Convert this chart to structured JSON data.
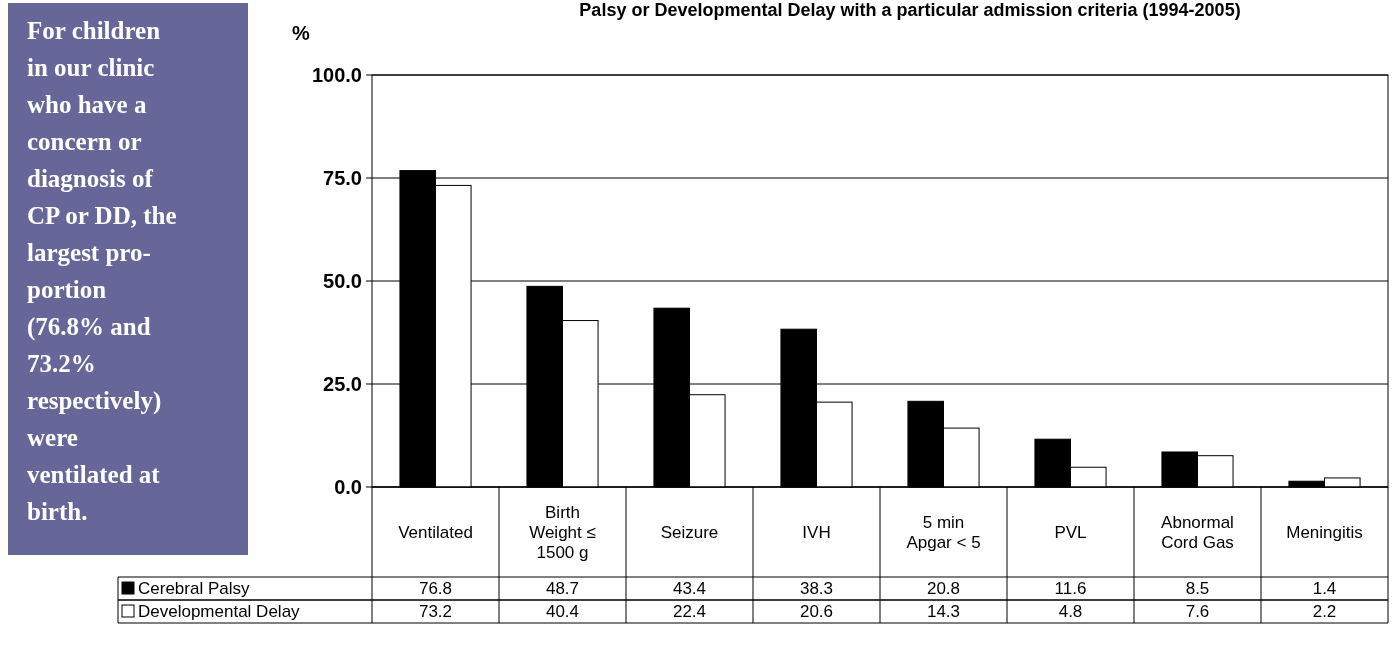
{
  "chart_data": {
    "type": "bar",
    "title": "Palsy or Developmental Delay with a particular admission criteria  (1994-2005)",
    "ylabel": "%",
    "categories": [
      "Ventilated",
      "Birth Weight ≤ 1500 g",
      "Seizure",
      "IVH",
      "5 min Apgar < 5",
      "PVL",
      "Abnormal Cord Gas",
      "Meningitis"
    ],
    "series": [
      {
        "name": "Cerebral Palsy",
        "color": "#000000",
        "values": [
          76.8,
          48.7,
          43.4,
          38.3,
          20.8,
          11.6,
          8.5,
          1.4
        ]
      },
      {
        "name": "Developmental Delay",
        "color": "#ffffff",
        "values": [
          73.2,
          40.4,
          22.4,
          20.6,
          14.3,
          4.8,
          7.6,
          2.2
        ]
      }
    ],
    "ylim": [
      0,
      100
    ],
    "yticks": [
      {
        "value": 0,
        "label": "0.0"
      },
      {
        "value": 25,
        "label": "25.0"
      },
      {
        "value": 50,
        "label": "50.0"
      },
      {
        "value": 75,
        "label": "75.0"
      },
      {
        "value": 100,
        "label": "100.0"
      }
    ],
    "grid": "y",
    "data_labels": true,
    "legend": "bottom",
    "annotations": [
      "For children\nin our clinic\nwho have a\nconcern or\ndiagnosis of\nCP or DD, the\nlargest pro-\nportion\n(76.8% and\n73.2%\nrespectively)\nwere\nventilated at\nbirth."
    ]
  }
}
